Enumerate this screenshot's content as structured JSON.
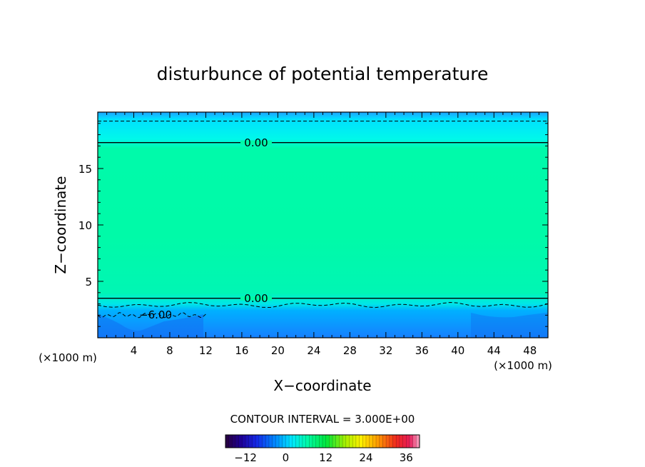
{
  "chart_data": {
    "type": "heatmap",
    "title": "disturbunce of potential temperature",
    "xlabel": "X−coordinate",
    "ylabel": "Z−coordinate",
    "x_unit_left": "(×1000 m)",
    "x_unit_right": "(×1000 m)",
    "xlim": [
      0,
      50
    ],
    "ylim": [
      0,
      20
    ],
    "x_ticks": [
      "4",
      "8",
      "12",
      "16",
      "20",
      "24",
      "28",
      "32",
      "36",
      "40",
      "44",
      "48"
    ],
    "y_ticks": [
      "5",
      "10",
      "15"
    ],
    "contour_labels": [
      "0.00",
      "0.00",
      "−6.00"
    ],
    "contour_interval_text": "CONTOUR INTERVAL = 3.000E+00",
    "contour_interval": 3.0,
    "colorbar": {
      "range": [
        -18,
        40
      ],
      "tick_labels": [
        "−12",
        "0",
        "12",
        "24",
        "36"
      ],
      "tick_values": [
        -12,
        0,
        12,
        24,
        36
      ]
    },
    "field_regions": [
      {
        "z_range": [
          0,
          3.5
        ],
        "approx_value": -3,
        "color": "#1e90ff"
      },
      {
        "z_range": [
          3.5,
          17.3
        ],
        "approx_value": 0.5,
        "color": "#00faa8"
      },
      {
        "z_range": [
          17.3,
          20
        ],
        "approx_value": -1,
        "color": "#00e8ff"
      }
    ],
    "contours": [
      {
        "level": 0,
        "style": "solid",
        "z": 3.5
      },
      {
        "level": 0,
        "style": "solid",
        "z": 17.3
      },
      {
        "level": -3,
        "style": "dashed",
        "z": 2.9
      },
      {
        "level": -3,
        "style": "dashed",
        "z": 19.2
      },
      {
        "level": -6,
        "style": "dashed",
        "x_range": [
          0,
          12
        ],
        "z": 2.0
      }
    ],
    "grid": false,
    "colors": {
      "low": "#1e90ff",
      "mid": "#00faa8",
      "top": "#00e8ff"
    }
  }
}
